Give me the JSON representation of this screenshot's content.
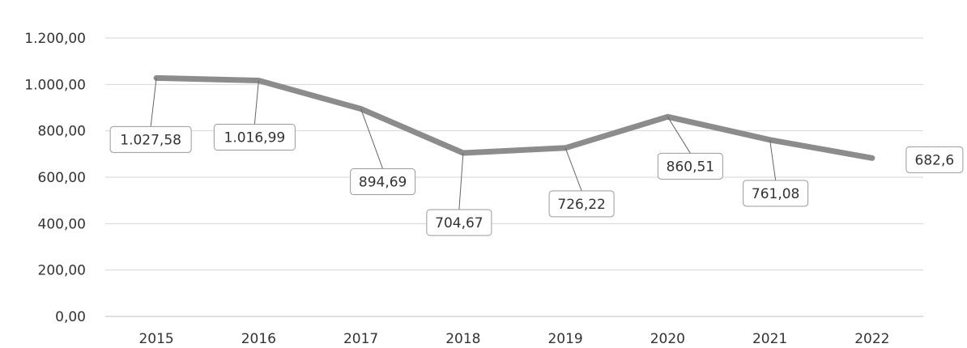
{
  "chart_data": {
    "type": "line",
    "title": "",
    "xlabel": "",
    "ylabel": "",
    "categories": [
      "2015",
      "2016",
      "2017",
      "2018",
      "2019",
      "2020",
      "2021",
      "2022"
    ],
    "series": [
      {
        "values": [
          1027.58,
          1016.99,
          894.69,
          704.67,
          726.22,
          860.51,
          761.08,
          682.6
        ],
        "data_labels": [
          "1.027,58",
          "1.016,99",
          "894,69",
          "704,67",
          "726,22",
          "860,51",
          "761,08",
          "682,6"
        ],
        "color": "#8c8c8c"
      }
    ],
    "ylim": [
      0,
      1200
    ],
    "yticks": [
      0,
      200,
      400,
      600,
      800,
      1000,
      1200
    ],
    "ytick_labels": [
      "0,00",
      "200,00",
      "400,00",
      "600,00",
      "800,00",
      "1.000,00",
      "1.200,00"
    ],
    "grid": true,
    "legend": "none"
  }
}
